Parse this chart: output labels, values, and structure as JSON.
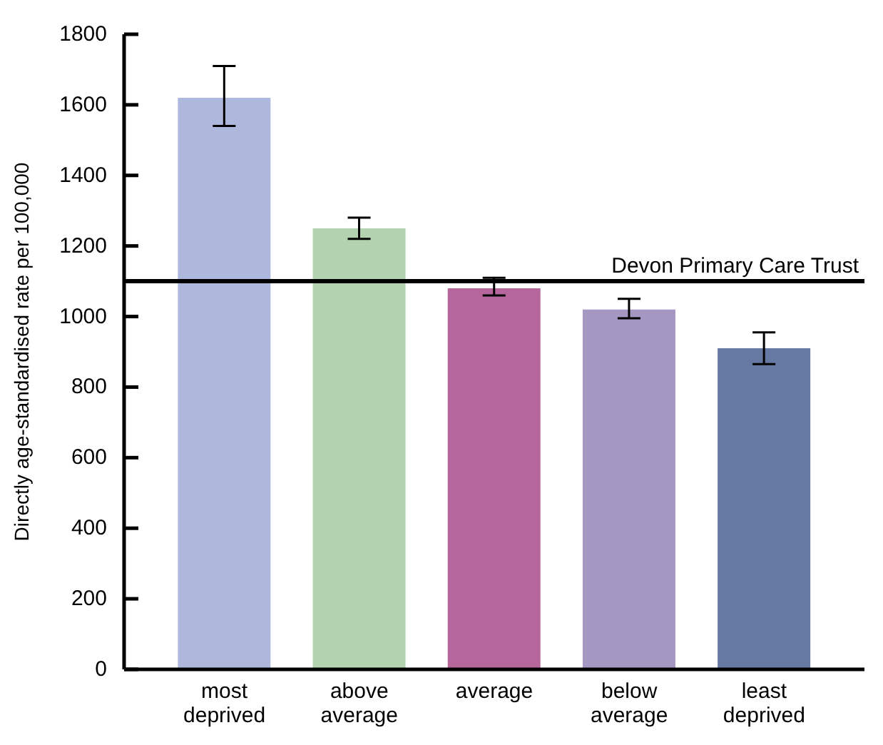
{
  "chart_data": {
    "type": "bar",
    "ylabel": "Directly age-standardised rate per 100,000",
    "categories": [
      "most deprived",
      "above average",
      "average",
      "below average",
      "least deprived"
    ],
    "values": [
      1620,
      1250,
      1080,
      1020,
      910
    ],
    "colors": [
      "#aeb8dc",
      "#b3d3b0",
      "#b5679c",
      "#a497c2",
      "#6679a3"
    ],
    "errors": [
      [
        1540,
        1710
      ],
      [
        1220,
        1280
      ],
      [
        1060,
        1110
      ],
      [
        995,
        1050
      ],
      [
        865,
        955
      ]
    ],
    "ylim": [
      0,
      1800
    ],
    "yticks": [
      0,
      200,
      400,
      600,
      800,
      1000,
      1200,
      1400,
      1600,
      1800
    ],
    "ref_lines": [
      {
        "axis": "y",
        "value": 1100,
        "label": "Devon Primary Care Trust",
        "color": "#000000"
      }
    ],
    "grid": false,
    "legend": false
  }
}
